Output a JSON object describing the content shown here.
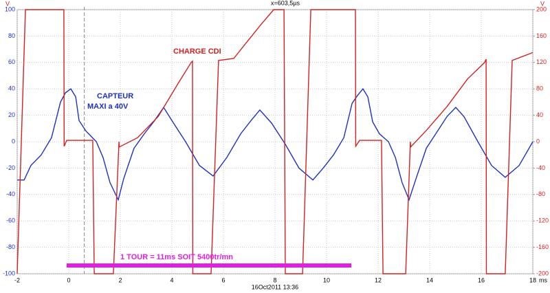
{
  "chart_data": {
    "type": "line",
    "left_unit": "V",
    "right_unit": "V",
    "x_unit": "ms",
    "cursor_label": "x=603,5µs",
    "cursor_x": 0.6035,
    "timestamp": "16Oct2011 13:36",
    "annotations": [
      "CHARGE CDI",
      "CAPTEUR",
      "MAXI a 40V",
      "1 TOUR = 11ms SOIT 5400tr/mn"
    ],
    "xlim": [
      -2,
      18
    ],
    "xticks": [
      -2,
      0,
      2,
      4,
      6,
      8,
      10,
      12,
      14,
      16,
      18
    ],
    "ylim": [
      -100,
      100
    ],
    "yticks": [
      -100,
      -80,
      -60,
      -40,
      -20,
      0,
      20,
      40,
      60,
      80,
      100
    ],
    "y2lim": [
      -200,
      200
    ],
    "y2ticks": [
      -200,
      -160,
      -120,
      -80,
      -40,
      0,
      40,
      80,
      120,
      160,
      200
    ],
    "grid": true,
    "series": [
      {
        "name": "CAPTEUR",
        "color": "#1f2fbf",
        "axis": "y",
        "x": [
          -2,
          -1.73,
          -1.47,
          -1.07,
          -0.67,
          -0.32,
          -0.13,
          0.08,
          0.27,
          0.4,
          0.67,
          1.07,
          1.33,
          1.6,
          1.92,
          2.13,
          2.53,
          2.93,
          3.33,
          3.68,
          4,
          4.53,
          5.07,
          5.6,
          6.13,
          6.67,
          7.07,
          7.41,
          7.87,
          8.4,
          8.93,
          9.47,
          9.87,
          10.27,
          10.67,
          10.99,
          11.2,
          11.41,
          11.6,
          11.79,
          12.05,
          12.4,
          12.67,
          12.93,
          13.2,
          13.47,
          13.87,
          14.27,
          14.67,
          15.01,
          15.33,
          15.87,
          16.4,
          16.93,
          17.47,
          18
        ],
        "values": [
          -29,
          -29,
          -18,
          -10,
          3,
          30,
          37,
          40,
          34,
          16,
          8,
          0,
          -12,
          -31,
          -44,
          -28,
          -5,
          6,
          16,
          26,
          16,
          0,
          -18,
          -26,
          -12,
          6,
          16,
          24,
          14,
          -2,
          -20,
          -29,
          -20,
          -10,
          3,
          29,
          35,
          40,
          34,
          15,
          6,
          0,
          -12,
          -31,
          -44,
          -28,
          -5,
          7,
          19,
          26,
          19,
          0,
          -18,
          -27,
          -18,
          0
        ]
      },
      {
        "name": "CHARGE CDI",
        "color": "#d42020",
        "axis": "y2",
        "x": [
          -2,
          -1.68,
          -0.19,
          -0.18,
          -0.08,
          0.93,
          0.99,
          1.73,
          1.95,
          1.96,
          2.67,
          3.47,
          4.27,
          4.75,
          4.8,
          4.81,
          5.52,
          5.81,
          6.4,
          6.93,
          7.47,
          7.95,
          8.35,
          8.4,
          9.07,
          9.39,
          11.12,
          11.13,
          11.28,
          12.13,
          12.19,
          13.07,
          13.25,
          13.26,
          13.87,
          14.67,
          15.47,
          16.13,
          16.19,
          16.2,
          16.93,
          17.2,
          18
        ],
        "values": [
          -200,
          200,
          200,
          -7,
          2,
          2,
          -200,
          -200,
          0,
          -8,
          6,
          38,
          90,
          120,
          122,
          -200,
          -200,
          123,
          126,
          152,
          178,
          200,
          200,
          -200,
          -200,
          200,
          200,
          -7,
          2,
          2,
          -200,
          -200,
          0,
          -8,
          17,
          53,
          95,
          120,
          125,
          -200,
          -200,
          123,
          135
        ]
      }
    ]
  }
}
